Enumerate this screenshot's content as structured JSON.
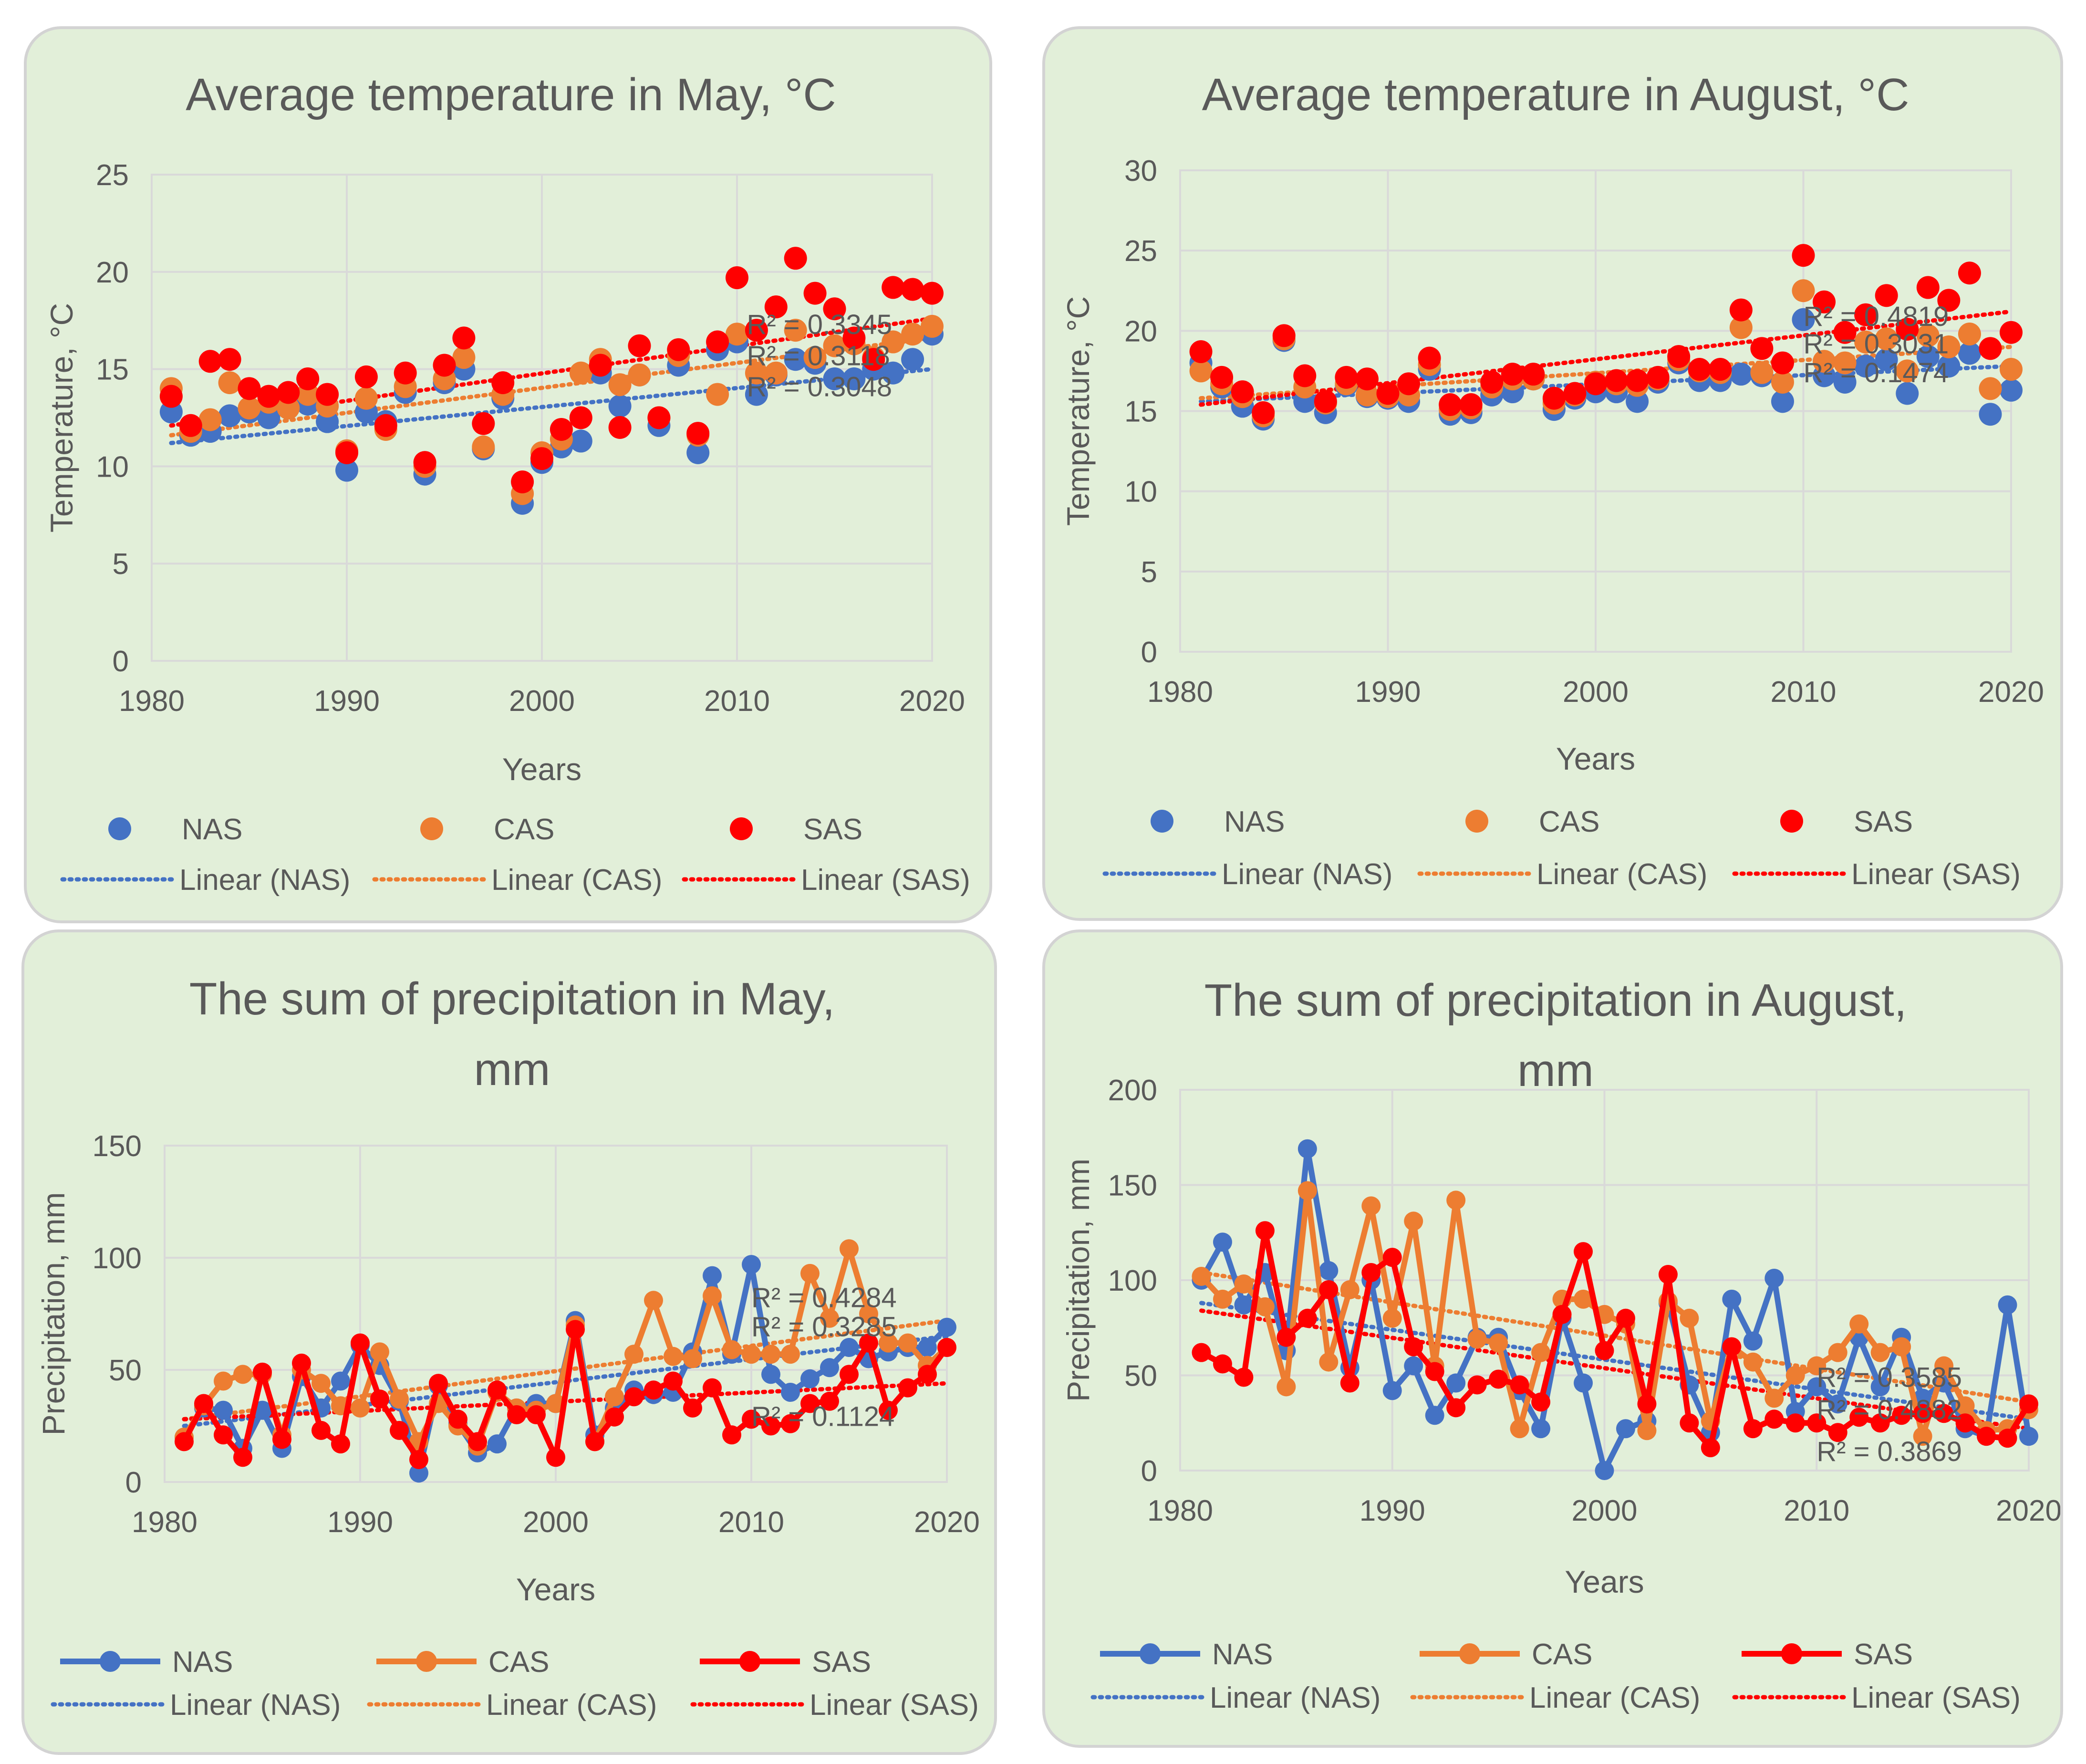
{
  "colors": {
    "NAS": "#4472c4",
    "CAS": "#ed7d31",
    "SAS": "#ff0000",
    "grid": "#d9d9d9",
    "text": "#595959",
    "panel": "#e2efd9"
  },
  "chart_data": [
    {
      "type": "scatter",
      "title_lines": [
        "Average temperature in May, °C"
      ],
      "xlabel": "Years",
      "ylabel": "Temperature, °C",
      "xlim": [
        1980,
        2020
      ],
      "ylim": [
        0,
        25
      ],
      "xticks": [
        1980,
        1990,
        2000,
        2010,
        2020
      ],
      "yticks": [
        0,
        5,
        10,
        15,
        20,
        25
      ],
      "grid": true,
      "connected": false,
      "legend_position": "bottom",
      "legend": {
        "markers": [
          "NAS",
          "CAS",
          "SAS"
        ],
        "trendlines": [
          "Linear (NAS)",
          "Linear (CAS)",
          "Linear (SAS)"
        ]
      },
      "r2_labels": [
        {
          "text": "R² = 0.3345",
          "x": 2010.5,
          "y": 16.8
        },
        {
          "text": "R² = 0.3118",
          "x": 2010.5,
          "y": 15.2
        },
        {
          "text": "R² = 0.3048",
          "x": 2010.5,
          "y": 13.6
        }
      ],
      "x": [
        1981,
        1982,
        1983,
        1984,
        1985,
        1986,
        1987,
        1988,
        1989,
        1990,
        1991,
        1992,
        1993,
        1994,
        1995,
        1996,
        1997,
        1998,
        1999,
        2000,
        2001,
        2002,
        2003,
        2004,
        2005,
        2006,
        2007,
        2008,
        2009,
        2010,
        2011,
        2012,
        2013,
        2014,
        2015,
        2016,
        2017,
        2018,
        2019,
        2020
      ],
      "series": [
        {
          "name": "NAS",
          "values": [
            12.8,
            11.6,
            11.8,
            12.6,
            12.8,
            12.5,
            13.0,
            13.2,
            12.3,
            9.8,
            12.8,
            12.3,
            13.8,
            9.6,
            14.3,
            15.0,
            10.9,
            13.5,
            8.1,
            10.2,
            11.0,
            11.3,
            14.8,
            13.1,
            14.7,
            12.1,
            15.2,
            10.7,
            16.0,
            16.4,
            13.7,
            14.7,
            15.5,
            15.3,
            14.5,
            14.5,
            15.0,
            14.8,
            15.5,
            16.8
          ]
        },
        {
          "name": "CAS",
          "values": [
            14.0,
            11.8,
            12.4,
            14.3,
            13.0,
            13.3,
            13.0,
            13.7,
            13.1,
            10.8,
            13.5,
            11.9,
            14.1,
            10.0,
            14.5,
            15.6,
            11.0,
            13.7,
            8.6,
            10.7,
            11.4,
            14.8,
            15.5,
            14.2,
            14.7,
            12.5,
            15.7,
            11.6,
            13.7,
            16.8,
            14.8,
            14.8,
            17.0,
            15.6,
            16.2,
            16.3,
            15.6,
            16.4,
            16.8,
            17.2
          ]
        },
        {
          "name": "SAS",
          "values": [
            13.6,
            12.1,
            15.4,
            15.5,
            14.0,
            13.6,
            13.8,
            14.5,
            13.7,
            10.7,
            14.6,
            12.1,
            14.8,
            10.2,
            15.2,
            16.6,
            12.2,
            14.3,
            9.2,
            10.4,
            11.9,
            12.5,
            15.2,
            12.0,
            16.2,
            12.5,
            16.0,
            11.7,
            16.4,
            19.7,
            17.0,
            18.2,
            20.7,
            18.9,
            18.1,
            16.6,
            15.5,
            19.2,
            19.1,
            18.9
          ]
        }
      ],
      "trend": [
        {
          "name": "NAS",
          "start": [
            1981,
            11.2
          ],
          "end": [
            2020,
            15.0
          ]
        },
        {
          "name": "CAS",
          "start": [
            1981,
            11.6
          ],
          "end": [
            2020,
            16.6
          ]
        },
        {
          "name": "SAS",
          "start": [
            1981,
            12.1
          ],
          "end": [
            2020,
            17.6
          ]
        }
      ]
    },
    {
      "type": "scatter",
      "title_lines": [
        "Average temperature in August, °C"
      ],
      "xlabel": "Years",
      "ylabel": "Temperature, °C",
      "xlim": [
        1980,
        2020
      ],
      "ylim": [
        0,
        30
      ],
      "xticks": [
        1980,
        1990,
        2000,
        2010,
        2020
      ],
      "yticks": [
        0,
        5,
        10,
        15,
        20,
        25,
        30
      ],
      "grid": true,
      "connected": false,
      "legend_position": "bottom",
      "legend": {
        "markers": [
          "NAS",
          "CAS",
          "SAS"
        ],
        "trendlines": [
          "Linear (NAS)",
          "Linear (CAS)",
          "Linear (SAS)"
        ]
      },
      "r2_labels": [
        {
          "text": "R² = 0.4819",
          "x": 2010,
          "y": 20.3
        },
        {
          "text": "R² = 0.3031",
          "x": 2010,
          "y": 18.6
        },
        {
          "text": "R² = 0.1474",
          "x": 2010,
          "y": 16.8
        }
      ],
      "x": [
        1981,
        1982,
        1983,
        1984,
        1985,
        1986,
        1987,
        1988,
        1989,
        1990,
        1991,
        1992,
        1993,
        1994,
        1995,
        1996,
        1997,
        1998,
        1999,
        2000,
        2001,
        2002,
        2003,
        2004,
        2005,
        2006,
        2007,
        2008,
        2009,
        2010,
        2011,
        2012,
        2013,
        2014,
        2015,
        2016,
        2017,
        2018,
        2019,
        2020
      ],
      "series": [
        {
          "name": "NAS",
          "values": [
            18.0,
            16.5,
            15.3,
            14.5,
            19.4,
            15.6,
            14.9,
            16.6,
            15.9,
            15.8,
            15.6,
            17.6,
            14.8,
            14.9,
            16.0,
            16.2,
            17.0,
            15.1,
            15.8,
            16.2,
            16.2,
            15.6,
            16.8,
            18.0,
            16.9,
            16.9,
            17.3,
            17.2,
            15.6,
            20.7,
            17.2,
            16.8,
            17.8,
            18.2,
            16.1,
            18.4,
            17.8,
            18.6,
            14.8,
            16.3
          ]
        },
        {
          "name": "CAS",
          "values": [
            17.5,
            16.7,
            15.9,
            14.7,
            19.5,
            16.5,
            15.5,
            16.7,
            16.0,
            15.9,
            16.0,
            17.9,
            15.1,
            15.2,
            16.5,
            17.0,
            17.0,
            15.5,
            16.0,
            16.8,
            16.7,
            16.6,
            17.0,
            18.2,
            17.5,
            17.4,
            20.2,
            17.4,
            16.8,
            22.5,
            18.1,
            18.0,
            19.3,
            19.5,
            17.5,
            19.7,
            19.0,
            19.8,
            16.4,
            17.6
          ]
        },
        {
          "name": "SAS",
          "values": [
            18.7,
            17.1,
            16.2,
            14.9,
            19.7,
            17.2,
            15.6,
            17.1,
            17.0,
            16.1,
            16.7,
            18.3,
            15.4,
            15.4,
            16.8,
            17.3,
            17.3,
            15.8,
            16.1,
            16.7,
            16.9,
            16.9,
            17.1,
            18.4,
            17.6,
            17.6,
            21.3,
            18.9,
            18.0,
            24.7,
            21.8,
            19.9,
            21.0,
            22.2,
            20.1,
            22.7,
            21.9,
            23.6,
            18.9,
            19.9
          ]
        }
      ],
      "trend": [
        {
          "name": "NAS",
          "start": [
            1981,
            15.6
          ],
          "end": [
            2020,
            17.8
          ]
        },
        {
          "name": "CAS",
          "start": [
            1981,
            15.8
          ],
          "end": [
            2020,
            19.0
          ]
        },
        {
          "name": "SAS",
          "start": [
            1981,
            15.4
          ],
          "end": [
            2020,
            21.2
          ]
        }
      ]
    },
    {
      "type": "line",
      "title_lines": [
        "The sum of precipitation in May,",
        "mm"
      ],
      "xlabel": "Years",
      "ylabel": "Precipitation, mm",
      "xlim": [
        1980,
        2020
      ],
      "ylim": [
        0,
        150
      ],
      "xticks": [
        1980,
        1990,
        2000,
        2010,
        2020
      ],
      "yticks": [
        0,
        50,
        100,
        150
      ],
      "grid": true,
      "connected": true,
      "legend_position": "bottom",
      "legend": {
        "markers": [
          "NAS",
          "CAS",
          "SAS"
        ],
        "trendlines": [
          "Linear (NAS)",
          "Linear (CAS)",
          "Linear (SAS)"
        ]
      },
      "r2_labels": [
        {
          "text": "R² = 0.4284",
          "x": 2010,
          "y": 78
        },
        {
          "text": "R² = 0.3285",
          "x": 2010,
          "y": 65
        },
        {
          "text": "R² = 0.1124",
          "x": 2010,
          "y": 25
        }
      ],
      "x": [
        1981,
        1982,
        1983,
        1984,
        1985,
        1986,
        1987,
        1988,
        1989,
        1990,
        1991,
        1992,
        1993,
        1994,
        1995,
        1996,
        1997,
        1998,
        1999,
        2000,
        2001,
        2002,
        2003,
        2004,
        2005,
        2006,
        2007,
        2008,
        2009,
        2010,
        2011,
        2012,
        2013,
        2014,
        2015,
        2016,
        2017,
        2018,
        2019,
        2020
      ],
      "series": [
        {
          "name": "NAS",
          "values": [
            20,
            33,
            32,
            15,
            32,
            15,
            47,
            33,
            45,
            61,
            52,
            36,
            4,
            43,
            26,
            13,
            17,
            33,
            35,
            35,
            72,
            21,
            33,
            41,
            39,
            40,
            58,
            92,
            57,
            97,
            48,
            40,
            46,
            51,
            60,
            55,
            58,
            60,
            60,
            69
          ]
        },
        {
          "name": "CAS",
          "values": [
            20,
            34,
            45,
            48,
            48,
            21,
            50,
            44,
            34,
            33,
            58,
            37,
            18,
            35,
            25,
            16,
            40,
            33,
            32,
            35,
            70,
            18,
            38,
            57,
            81,
            56,
            55,
            83,
            59,
            57,
            57,
            57,
            93,
            73,
            104,
            75,
            62,
            62,
            52,
            60
          ]
        },
        {
          "name": "SAS",
          "values": [
            18,
            35,
            21,
            11,
            49,
            19,
            53,
            23,
            17,
            62,
            37,
            23,
            10,
            44,
            28,
            18,
            41,
            30,
            30,
            11,
            68,
            18,
            29,
            38,
            41,
            45,
            33,
            42,
            21,
            28,
            25,
            26,
            35,
            36,
            48,
            62,
            32,
            42,
            48,
            60
          ]
        }
      ],
      "trend": [
        {
          "name": "NAS",
          "start": [
            1981,
            25
          ],
          "end": [
            2020,
            65
          ]
        },
        {
          "name": "CAS",
          "start": [
            1981,
            28
          ],
          "end": [
            2020,
            72
          ]
        },
        {
          "name": "SAS",
          "start": [
            1981,
            28
          ],
          "end": [
            2020,
            44
          ]
        }
      ]
    },
    {
      "type": "line",
      "title_lines": [
        "The sum of precipitation in August,",
        "mm"
      ],
      "xlabel": "Years",
      "ylabel": "Precipitation, mm",
      "xlim": [
        1980,
        2020
      ],
      "ylim": [
        0,
        200
      ],
      "xticks": [
        1980,
        1990,
        2000,
        2010,
        2020
      ],
      "yticks": [
        0,
        50,
        100,
        150,
        200
      ],
      "grid": true,
      "connected": true,
      "legend_position": "bottom",
      "legend": {
        "markers": [
          "NAS",
          "CAS",
          "SAS"
        ],
        "trendlines": [
          "Linear (NAS)",
          "Linear (CAS)",
          "Linear (SAS)"
        ]
      },
      "r2_labels": [
        {
          "text": "R² = 0.3585",
          "x": 2010,
          "y": 44
        },
        {
          "text": "R² = 0.4882",
          "x": 2010,
          "y": 27
        },
        {
          "text": "R² = 0.3869",
          "x": 2010,
          "y": 5
        }
      ],
      "x": [
        1981,
        1982,
        1983,
        1984,
        1985,
        1986,
        1987,
        1988,
        1989,
        1990,
        1991,
        1992,
        1993,
        1994,
        1995,
        1996,
        1997,
        1998,
        1999,
        2000,
        2001,
        2002,
        2003,
        2004,
        2005,
        2006,
        2007,
        2008,
        2009,
        2010,
        2011,
        2012,
        2013,
        2014,
        2015,
        2016,
        2017,
        2018,
        2019,
        2020
      ],
      "series": [
        {
          "name": "NAS",
          "values": [
            100,
            120,
            87,
            104,
            63,
            169,
            105,
            54,
            100,
            42,
            55,
            29,
            46,
            70,
            70,
            42,
            22,
            80,
            46,
            0,
            22,
            26,
            88,
            45,
            20,
            90,
            68,
            101,
            31,
            44,
            35,
            70,
            44,
            70,
            38,
            46,
            22,
            18,
            87,
            18
          ]
        },
        {
          "name": "CAS",
          "values": [
            102,
            90,
            98,
            86,
            44,
            147,
            57,
            95,
            139,
            80,
            131,
            55,
            142,
            69,
            67,
            22,
            62,
            90,
            90,
            82,
            77,
            21,
            89,
            80,
            26,
            65,
            57,
            38,
            50,
            55,
            62,
            77,
            62,
            65,
            18,
            55,
            34,
            21,
            22,
            32
          ]
        },
        {
          "name": "SAS",
          "values": [
            62,
            56,
            49,
            126,
            70,
            80,
            95,
            46,
            104,
            112,
            65,
            52,
            33,
            45,
            48,
            45,
            36,
            82,
            115,
            63,
            80,
            35,
            103,
            25,
            12,
            65,
            22,
            27,
            25,
            25,
            20,
            28,
            25,
            29,
            30,
            30,
            25,
            18,
            17,
            35
          ]
        }
      ],
      "trend": [
        {
          "name": "NAS",
          "start": [
            1981,
            88
          ],
          "end": [
            2020,
            27
          ]
        },
        {
          "name": "CAS",
          "start": [
            1981,
            104
          ],
          "end": [
            2020,
            36
          ]
        },
        {
          "name": "SAS",
          "start": [
            1981,
            84
          ],
          "end": [
            2020,
            22
          ]
        }
      ]
    }
  ]
}
